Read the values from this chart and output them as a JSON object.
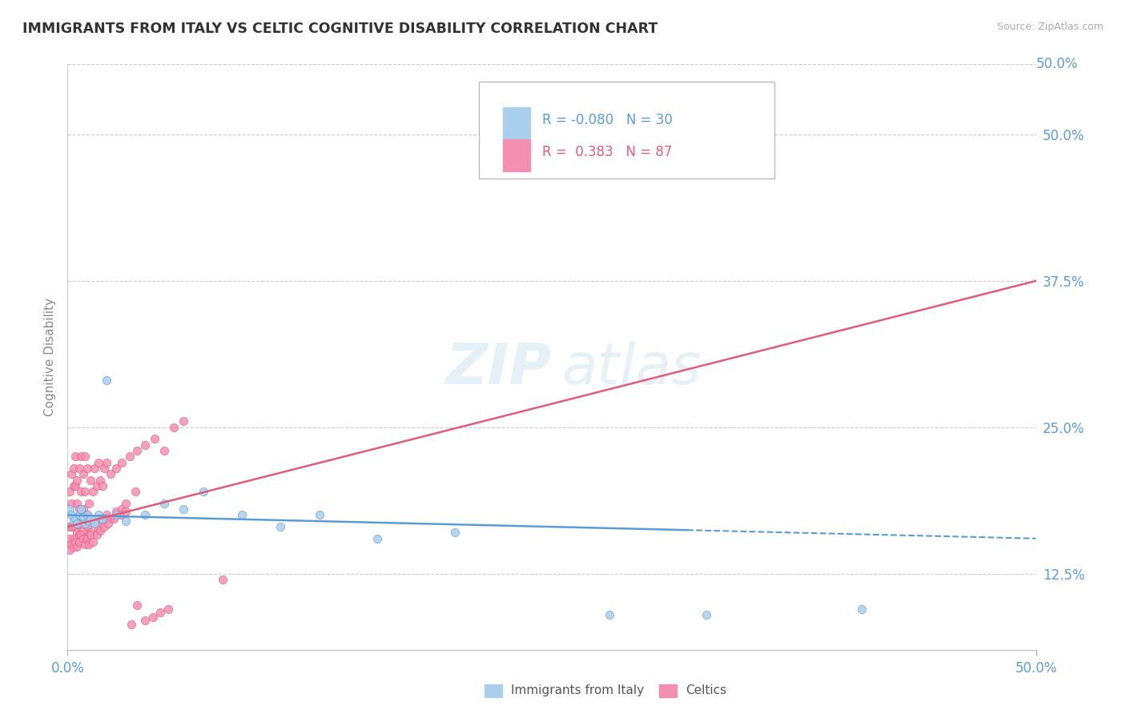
{
  "title": "IMMIGRANTS FROM ITALY VS CELTIC COGNITIVE DISABILITY CORRELATION CHART",
  "source": "Source: ZipAtlas.com",
  "ylabel": "Cognitive Disability",
  "xlim": [
    0.0,
    0.5
  ],
  "ylim": [
    0.06,
    0.56
  ],
  "ytick_positions": [
    0.125,
    0.25,
    0.375,
    0.5
  ],
  "ytick_labels": [
    "12.5%",
    "25.0%",
    "37.5%",
    "50.0%"
  ],
  "legend_R1": "-0.080",
  "legend_N1": "30",
  "legend_R2": "0.383",
  "legend_N2": "87",
  "color_italy": "#aacfed",
  "color_celtics": "#f48fb1",
  "color_italy_dark": "#5b9bd5",
  "color_celtics_dark": "#e05c7a",
  "bg_color": "#ffffff",
  "grid_color": "#cccccc",
  "title_color": "#333333",
  "axis_label_color": "#888888",
  "tick_color": "#5b9bd5",
  "source_color": "#aaaaaa",
  "italy_scatter_x": [
    0.001,
    0.002,
    0.003,
    0.004,
    0.005,
    0.006,
    0.007,
    0.008,
    0.009,
    0.01,
    0.011,
    0.012,
    0.014,
    0.016,
    0.018,
    0.02,
    0.025,
    0.03,
    0.04,
    0.05,
    0.06,
    0.07,
    0.09,
    0.11,
    0.13,
    0.16,
    0.2,
    0.28,
    0.33,
    0.41
  ],
  "italy_scatter_y": [
    0.18,
    0.175,
    0.17,
    0.172,
    0.168,
    0.175,
    0.18,
    0.173,
    0.168,
    0.175,
    0.17,
    0.172,
    0.168,
    0.175,
    0.172,
    0.29,
    0.175,
    0.17,
    0.175,
    0.185,
    0.18,
    0.195,
    0.175,
    0.165,
    0.175,
    0.155,
    0.16,
    0.09,
    0.09,
    0.095
  ],
  "celtics_scatter_x": [
    0.001,
    0.001,
    0.002,
    0.002,
    0.003,
    0.003,
    0.004,
    0.004,
    0.005,
    0.005,
    0.006,
    0.006,
    0.007,
    0.007,
    0.008,
    0.008,
    0.009,
    0.009,
    0.01,
    0.01,
    0.011,
    0.012,
    0.013,
    0.014,
    0.015,
    0.016,
    0.017,
    0.018,
    0.019,
    0.02,
    0.022,
    0.025,
    0.028,
    0.032,
    0.036,
    0.04,
    0.045,
    0.05,
    0.055,
    0.06,
    0.001,
    0.002,
    0.003,
    0.004,
    0.005,
    0.006,
    0.007,
    0.008,
    0.009,
    0.01,
    0.012,
    0.014,
    0.016,
    0.018,
    0.02,
    0.022,
    0.025,
    0.028,
    0.03,
    0.035,
    0.001,
    0.002,
    0.003,
    0.004,
    0.005,
    0.006,
    0.007,
    0.008,
    0.009,
    0.01,
    0.011,
    0.012,
    0.013,
    0.015,
    0.017,
    0.019,
    0.021,
    0.024,
    0.027,
    0.03,
    0.033,
    0.036,
    0.04,
    0.044,
    0.048,
    0.052,
    0.08
  ],
  "celtics_scatter_y": [
    0.165,
    0.195,
    0.21,
    0.185,
    0.2,
    0.215,
    0.2,
    0.225,
    0.185,
    0.205,
    0.215,
    0.18,
    0.225,
    0.195,
    0.21,
    0.18,
    0.195,
    0.225,
    0.175,
    0.215,
    0.185,
    0.205,
    0.195,
    0.215,
    0.2,
    0.22,
    0.205,
    0.2,
    0.215,
    0.22,
    0.21,
    0.215,
    0.22,
    0.225,
    0.23,
    0.235,
    0.24,
    0.23,
    0.25,
    0.255,
    0.155,
    0.165,
    0.155,
    0.165,
    0.16,
    0.158,
    0.168,
    0.162,
    0.156,
    0.165,
    0.16,
    0.168,
    0.163,
    0.17,
    0.175,
    0.172,
    0.178,
    0.18,
    0.185,
    0.195,
    0.145,
    0.15,
    0.148,
    0.152,
    0.148,
    0.152,
    0.158,
    0.155,
    0.15,
    0.155,
    0.15,
    0.158,
    0.152,
    0.158,
    0.162,
    0.165,
    0.168,
    0.172,
    0.175,
    0.178,
    0.082,
    0.098,
    0.085,
    0.088,
    0.092,
    0.095,
    0.12
  ],
  "italy_line_x": [
    0.0,
    0.5
  ],
  "italy_line_y": [
    0.175,
    0.155
  ],
  "celtics_line_x": [
    0.0,
    0.5
  ],
  "celtics_line_y": [
    0.165,
    0.375
  ]
}
